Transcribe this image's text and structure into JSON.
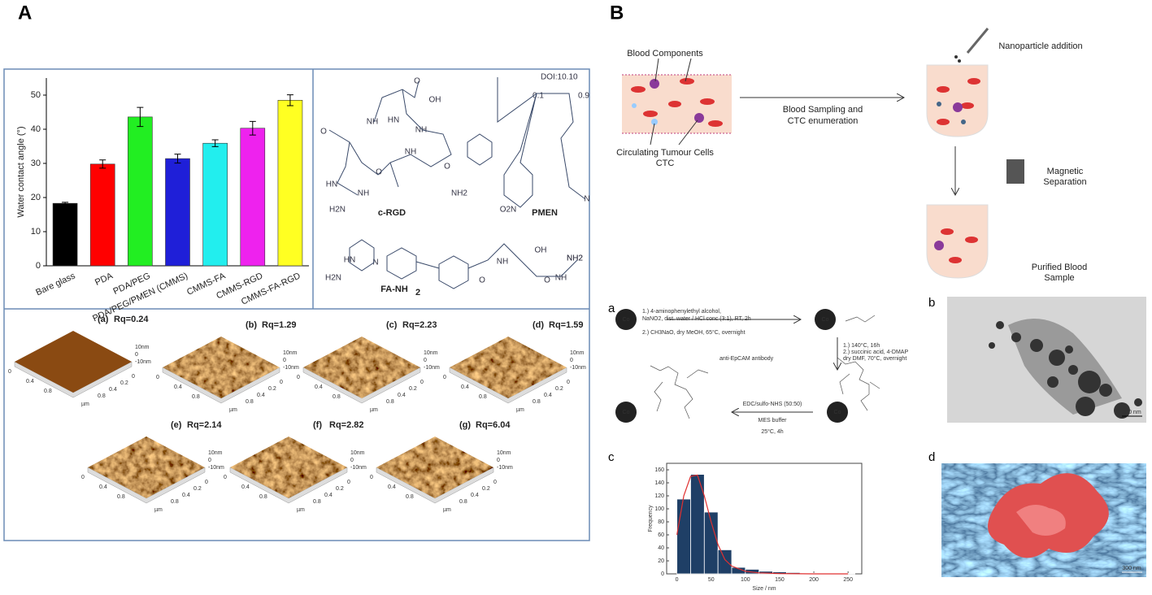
{
  "panel_labels": [
    "A",
    "B",
    "a",
    "b",
    "c",
    "d"
  ],
  "chart_data": [
    {
      "type": "bar",
      "axis_label": "Water contact angle (°)",
      "categories": [
        "Bare glass",
        "PDA",
        "PDA/PEG",
        "PDA/PEG/PMEN (CMMS)",
        "CMMS-FA",
        "CMMS-RGD",
        "CMMS-FA-RGD"
      ],
      "values": [
        18.3,
        29.8,
        43.6,
        31.4,
        35.9,
        40.3,
        48.5
      ],
      "errors": [
        0.3,
        1.2,
        2.8,
        1.3,
        1.0,
        2.0,
        1.6
      ],
      "colors": [
        "#000000",
        "#ff0000",
        "#22ee22",
        "#1f1fd8",
        "#22eeee",
        "#ee22ee",
        "#ffff22"
      ],
      "ylim": [
        0,
        55
      ],
      "yticks": [
        0,
        10,
        20,
        30,
        40,
        50
      ]
    },
    {
      "type": "histogram",
      "x_label": "Size / nm",
      "y_label": "Frequency",
      "bins": [
        0,
        20,
        40,
        60,
        80,
        100,
        120,
        140,
        160,
        180,
        200,
        220,
        240,
        260
      ],
      "counts": [
        115,
        153,
        95,
        37,
        10,
        7,
        4,
        3,
        2,
        1,
        1,
        0,
        1
      ],
      "color": "#1f3f66",
      "fit": {
        "color": "#e03030",
        "x": [
          0,
          10,
          20,
          30,
          40,
          50,
          60,
          70,
          80,
          100,
          120,
          150,
          200,
          250
        ],
        "values": [
          60,
          120,
          150,
          152,
          120,
          80,
          45,
          22,
          12,
          4,
          1.5,
          0.5,
          0,
          0
        ]
      },
      "xlim": [
        -15,
        270
      ],
      "xticks": [
        0,
        50,
        100,
        150,
        200,
        250
      ],
      "ylim": [
        0,
        170
      ],
      "yticks": [
        0,
        20,
        40,
        60,
        80,
        100,
        120,
        140,
        160
      ]
    }
  ],
  "structures": {
    "doi": "DOI:10.10",
    "names": [
      "c-RGD",
      "PMEN",
      "FA-NH"
    ],
    "subscript": "2",
    "groups": [
      "OH",
      "O",
      "NH",
      "HN",
      "O",
      "NH",
      "O",
      "NH",
      "O",
      "HN",
      "NH",
      "H2N",
      "NH2",
      "O2N",
      "0.1",
      "0.9",
      "N",
      "OH",
      "O",
      "NH2",
      "H2N",
      "N",
      "HN",
      "NH",
      "O",
      "NH",
      "NH2"
    ]
  },
  "afm": [
    {
      "tag": "(a)",
      "rq": "Rq=0.24"
    },
    {
      "tag": "(b)",
      "rq": "Rq=1.29"
    },
    {
      "tag": "(c)",
      "rq": "Rq=2.23"
    },
    {
      "tag": "(d)",
      "rq": "Rq=1.59"
    },
    {
      "tag": "(e)",
      "rq": "Rq=2.14"
    },
    {
      "tag": "(f)",
      "rq": "Rq=2.82"
    },
    {
      "tag": "(g)",
      "rq": "Rq=6.04"
    }
  ],
  "afm_axis": {
    "z": [
      "10nm",
      "0",
      "-10nm"
    ],
    "x": [
      "0",
      "0.4",
      "0.8"
    ],
    "y": [
      "0.8",
      "0.4",
      "0.2",
      "0"
    ],
    "unit": "µm"
  },
  "schematic": {
    "blood": "Blood Components",
    "ctc": [
      "Circulating Tumour Cells",
      "CTC"
    ],
    "sampling": [
      "Blood Sampling and",
      "CTC enumeration"
    ],
    "addition": "Nanoparticle addition",
    "magnetic": [
      "Magnetic",
      "Separation"
    ],
    "purified": [
      "Purified Blood",
      "Sample"
    ]
  },
  "synthesis": {
    "core": "Co",
    "step1": [
      "1.) 4-aminophenylethyl alcohol,",
      "NaNO2, dist. water / HCl conc (3:1), RT, 2h",
      "2.) CH3NaO, dry MeOH, 65°C, overnight"
    ],
    "step2": [
      "1.) 140°C, 16h",
      "2.) succinic acid, 4-DMAP",
      "dry DMF, 70°C, overnight"
    ],
    "step3": [
      "EDC/sulfo-NHS (50:50)",
      "MES buffer",
      "25°C, 4h"
    ],
    "antibody": "anti-EpCAM antibody"
  },
  "tem": {
    "scale": "200 nm"
  },
  "sem": {
    "scale": "300 nm"
  }
}
